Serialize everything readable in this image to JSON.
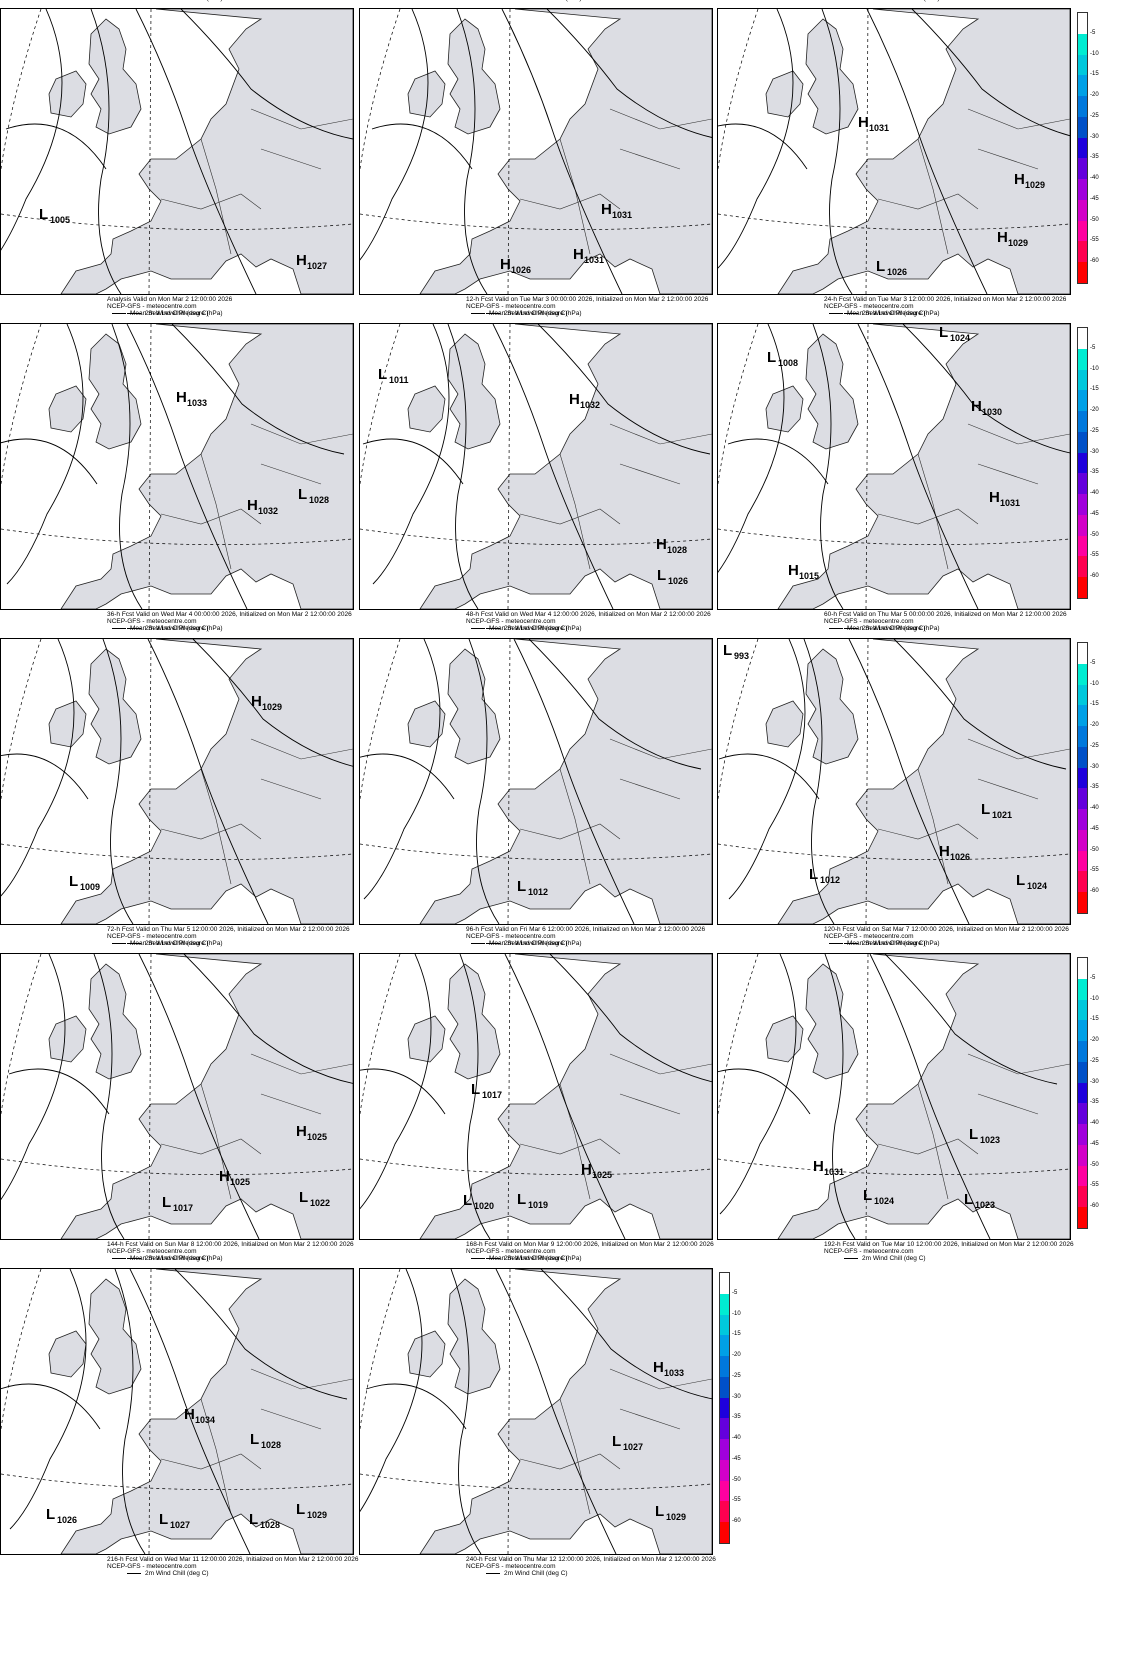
{
  "legend": {
    "line1": "Mean Sea Level Pressure (hPa)",
    "line2": "2m Wind Chill (deg C)",
    "line1_top": "Mean Sea Level Pressure (hPa)"
  },
  "credit": "NCEP-GFS - meteocentre.com",
  "colorbar": {
    "ticks": [
      "-5",
      "-10",
      "-15",
      "-20",
      "-25",
      "-30",
      "-35",
      "-40",
      "-45",
      "-50",
      "-55",
      "-60"
    ],
    "colors": [
      "#ffffff",
      "#00ecd2",
      "#00c8dc",
      "#00a0e6",
      "#0078dc",
      "#0050c8",
      "#1e00dc",
      "#6400dc",
      "#a000dc",
      "#d200c8",
      "#ff00a0",
      "#ff0050",
      "#ff0000"
    ]
  },
  "panels": [
    {
      "caption": "Analysis Valid on Mon Mar  2 12:00:00 2026",
      "centers": [
        {
          "t": "L",
          "v": "1005"
        },
        {
          "t": "H",
          "v": "1027"
        }
      ]
    },
    {
      "caption": "12-h Fcst Valid on Tue Mar  3 00:00:00 2026, Initialized on Mon Mar  2 12:00:00 2026",
      "centers": [
        {
          "t": "H",
          "v": "1031"
        },
        {
          "t": "H",
          "v": "1031"
        },
        {
          "t": "H",
          "v": "1026"
        }
      ]
    },
    {
      "caption": "24-h Fcst Valid on Tue Mar  3 12:00:00 2026, Initialized on Mon Mar  2 12:00:00 2026",
      "centers": [
        {
          "t": "H",
          "v": "1031"
        },
        {
          "t": "H",
          "v": "1029"
        },
        {
          "t": "H",
          "v": "1029"
        },
        {
          "t": "L",
          "v": "1026"
        }
      ]
    },
    {
      "caption": "36-h Fcst Valid on Wed Mar  4 00:00:00 2026, Initialized on Mon Mar  2 12:00:00 2026",
      "centers": [
        {
          "t": "H",
          "v": "1033"
        },
        {
          "t": "H",
          "v": "1032"
        },
        {
          "t": "L",
          "v": "1028"
        }
      ]
    },
    {
      "caption": "48-h Fcst Valid on Wed Mar  4 12:00:00 2026, Initialized on Mon Mar  2 12:00:00 2026",
      "centers": [
        {
          "t": "L",
          "v": "1011"
        },
        {
          "t": "H",
          "v": "1032"
        },
        {
          "t": "H",
          "v": "1028"
        },
        {
          "t": "L",
          "v": "1026"
        }
      ]
    },
    {
      "caption": "60-h Fcst Valid on Thu Mar  5 00:00:00 2026, Initialized on Mon Mar  2 12:00:00 2026",
      "centers": [
        {
          "t": "L",
          "v": "1008"
        },
        {
          "t": "L",
          "v": "1024"
        },
        {
          "t": "H",
          "v": "1030"
        },
        {
          "t": "H",
          "v": "1031"
        },
        {
          "t": "H",
          "v": "1015"
        }
      ]
    },
    {
      "caption": "72-h Fcst Valid on Thu Mar  5 12:00:00 2026, Initialized on Mon Mar  2 12:00:00 2026",
      "centers": [
        {
          "t": "H",
          "v": "1029"
        },
        {
          "t": "L",
          "v": "1009"
        }
      ]
    },
    {
      "caption": "96-h Fcst Valid on Fri Mar  6 12:00:00 2026, Initialized on Mon Mar  2 12:00:00 2026",
      "centers": [
        {
          "t": "L",
          "v": "1012"
        }
      ]
    },
    {
      "caption": "120-h Fcst Valid on Sat Mar  7 12:00:00 2026, Initialized on Mon Mar  2 12:00:00 2026",
      "centers": [
        {
          "t": "L",
          "v": "993"
        },
        {
          "t": "L",
          "v": "1021"
        },
        {
          "t": "H",
          "v": "1026"
        },
        {
          "t": "L",
          "v": "1012"
        },
        {
          "t": "L",
          "v": "1024"
        }
      ]
    },
    {
      "caption": "144-h Fcst Valid on Sun Mar  8 12:00:00 2026, Initialized on Mon Mar  2 12:00:00 2026",
      "centers": [
        {
          "t": "H",
          "v": "1025"
        },
        {
          "t": "H",
          "v": "1025"
        },
        {
          "t": "L",
          "v": "1017"
        },
        {
          "t": "L",
          "v": "1022"
        }
      ]
    },
    {
      "caption": "168-h Fcst Valid on Mon Mar  9 12:00:00 2026, Initialized on Mon Mar  2 12:00:00 2026",
      "centers": [
        {
          "t": "L",
          "v": "1017"
        },
        {
          "t": "H",
          "v": "1025"
        },
        {
          "t": "L",
          "v": "1020"
        },
        {
          "t": "L",
          "v": "1019"
        }
      ]
    },
    {
      "caption": "192-h Fcst Valid on Tue Mar 10 12:00:00 2026, Initialized on Mon Mar  2 12:00:00 2026",
      "centers": [
        {
          "t": "L",
          "v": "1023"
        },
        {
          "t": "H",
          "v": "1031"
        },
        {
          "t": "L",
          "v": "1024"
        },
        {
          "t": "L",
          "v": "1023"
        }
      ]
    },
    {
      "caption": "216-h Fcst Valid on Wed Mar 11 12:00:00 2026, Initialized on Mon Mar  2 12:00:00 2026",
      "centers": [
        {
          "t": "H",
          "v": "1034"
        },
        {
          "t": "L",
          "v": "1028"
        },
        {
          "t": "L",
          "v": "1026"
        },
        {
          "t": "L",
          "v": "1027"
        },
        {
          "t": "L",
          "v": "1028"
        },
        {
          "t": "L",
          "v": "1029"
        }
      ]
    },
    {
      "caption": "240-h Fcst Valid on Thu Mar 12 12:00:00 2026, Initialized on Mon Mar  2 12:00:00 2026",
      "centers": [
        {
          "t": "H",
          "v": "1033"
        },
        {
          "t": "L",
          "v": "1027"
        },
        {
          "t": "L",
          "v": "1029"
        }
      ]
    }
  ]
}
